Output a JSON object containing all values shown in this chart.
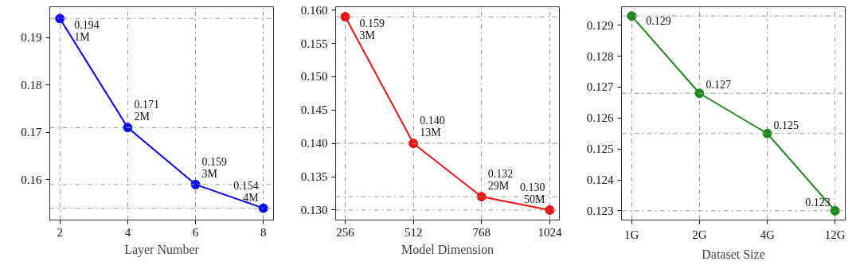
{
  "chart_data": [
    {
      "type": "line",
      "xlabel": "Layer Number",
      "x": [
        2,
        4,
        6,
        8
      ],
      "xlim": [
        1.7,
        8.3
      ],
      "xticks": [
        2,
        4,
        6,
        8
      ],
      "ylim": [
        0.1515,
        0.1965
      ],
      "yticks": [
        {
          "value": 0.16,
          "label": "0.16"
        },
        {
          "value": 0.17,
          "label": "0.17"
        },
        {
          "value": 0.18,
          "label": "0.18"
        },
        {
          "value": 0.19,
          "label": "0.19"
        }
      ],
      "series": [
        {
          "color": "#0a0af0",
          "values": [
            0.194,
            0.171,
            0.159,
            0.154
          ],
          "value_labels": [
            "0.194\n1M",
            "0.171\n2M",
            "0.159\n3M",
            "0.154\n4M"
          ]
        }
      ],
      "marker": "circle",
      "grid": "x",
      "ref_lines": [
        {
          "axis": "y",
          "value": 0.194,
          "line_style": "dashdot"
        },
        {
          "axis": "y",
          "value": 0.171,
          "line_style": "dashdot"
        },
        {
          "axis": "y",
          "value": 0.159,
          "line_style": "dashdot"
        },
        {
          "axis": "y",
          "value": 0.154,
          "line_style": "dashdot"
        }
      ]
    },
    {
      "type": "line",
      "xlabel": "Model Dimension",
      "x": [
        256,
        512,
        768,
        1024
      ],
      "xlim": [
        220,
        1060
      ],
      "xticks": [
        256,
        512,
        768,
        1024
      ],
      "ylim": [
        0.1285,
        0.1605
      ],
      "yticks": [
        {
          "value": 0.13,
          "label": "0.130"
        },
        {
          "value": 0.135,
          "label": "0.135"
        },
        {
          "value": 0.14,
          "label": "0.140"
        },
        {
          "value": 0.145,
          "label": "0.145"
        },
        {
          "value": 0.15,
          "label": "0.150"
        },
        {
          "value": 0.155,
          "label": "0.155"
        },
        {
          "value": 0.16,
          "label": "0.160"
        }
      ],
      "series": [
        {
          "color": "#f01010",
          "values": [
            0.159,
            0.14,
            0.132,
            0.13
          ],
          "value_labels": [
            "0.159\n3M",
            "0.140\n13M",
            "0.132\n29M",
            "0.130\n50M"
          ]
        }
      ],
      "marker": "circle",
      "grid": "x",
      "ref_lines": [
        {
          "axis": "y",
          "value": 0.159,
          "line_style": "dashdot"
        },
        {
          "axis": "y",
          "value": 0.14,
          "line_style": "dashdot"
        },
        {
          "axis": "y",
          "value": 0.132,
          "line_style": "dashdot"
        },
        {
          "axis": "y",
          "value": 0.13,
          "line_style": "dashdot"
        }
      ]
    },
    {
      "type": "line",
      "xlabel": "Dataset Size",
      "categories": [
        "1G",
        "2G",
        "4G",
        "12G"
      ],
      "ylim": [
        0.1227,
        0.1296
      ],
      "yticks": [
        0.123,
        0.124,
        0.125,
        0.126,
        0.127,
        0.128,
        0.129
      ],
      "series": [
        {
          "color": "#1a8a1a",
          "values": [
            0.1293,
            0.1268,
            0.1255,
            0.123
          ],
          "value_labels": [
            "0.129",
            "0.127",
            "0.125",
            "0.123"
          ]
        }
      ],
      "marker": "circle",
      "grid": "x",
      "ref_lines": [
        {
          "axis": "y",
          "value": 0.1293,
          "line_style": "dashdot"
        },
        {
          "axis": "y",
          "value": 0.1268,
          "line_style": "dashdot"
        },
        {
          "axis": "y",
          "value": 0.1255,
          "line_style": "dashdot"
        },
        {
          "axis": "y",
          "value": 0.123,
          "line_style": "dashdot"
        }
      ]
    }
  ]
}
